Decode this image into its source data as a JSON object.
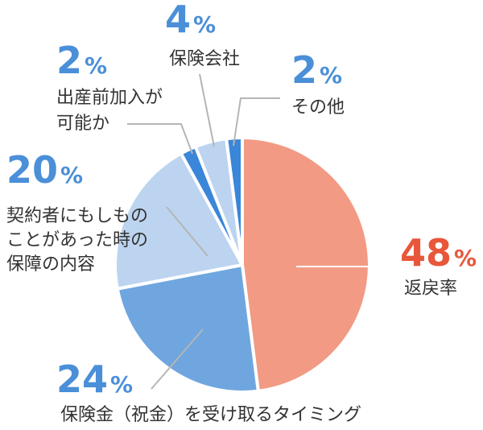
{
  "chart_data": {
    "type": "pie",
    "title": "",
    "start": "top-clockwise",
    "slices": [
      {
        "label": "返戻率",
        "label_lines": [
          "返戻率"
        ],
        "value": 48,
        "display": "48",
        "color": "#f29a84",
        "pct_color": "#e8573b"
      },
      {
        "label": "保険金（祝金）を受け取るタイミング",
        "label_lines": [
          "保険金（祝金）を受け取るタイミング"
        ],
        "value": 24,
        "display": "24",
        "color": "#6fa6df",
        "pct_color": "#4a8fd8"
      },
      {
        "label": "契約者にもしものことがあった時の保障の内容",
        "label_lines": [
          "契約者にもしもの",
          "ことがあった時の",
          "保障の内容"
        ],
        "value": 20,
        "display": "20",
        "color": "#bcd4ef",
        "pct_color": "#4a8fd8"
      },
      {
        "label": "出産前加入が可能か",
        "label_lines": [
          "出産前加入が",
          "可能か"
        ],
        "value": 2,
        "display": "2",
        "color": "#3a86d8",
        "pct_color": "#4a8fd8"
      },
      {
        "label": "保険会社",
        "label_lines": [
          "保険会社"
        ],
        "value": 4,
        "display": "4",
        "color": "#bcd4ef",
        "pct_color": "#4a8fd8"
      },
      {
        "label": "その他",
        "label_lines": [
          "その他"
        ],
        "value": 2,
        "display": "2",
        "color": "#3a86d8",
        "pct_color": "#4a8fd8"
      }
    ],
    "percent_sign": "%",
    "leader_color": "#b5b5b5"
  }
}
